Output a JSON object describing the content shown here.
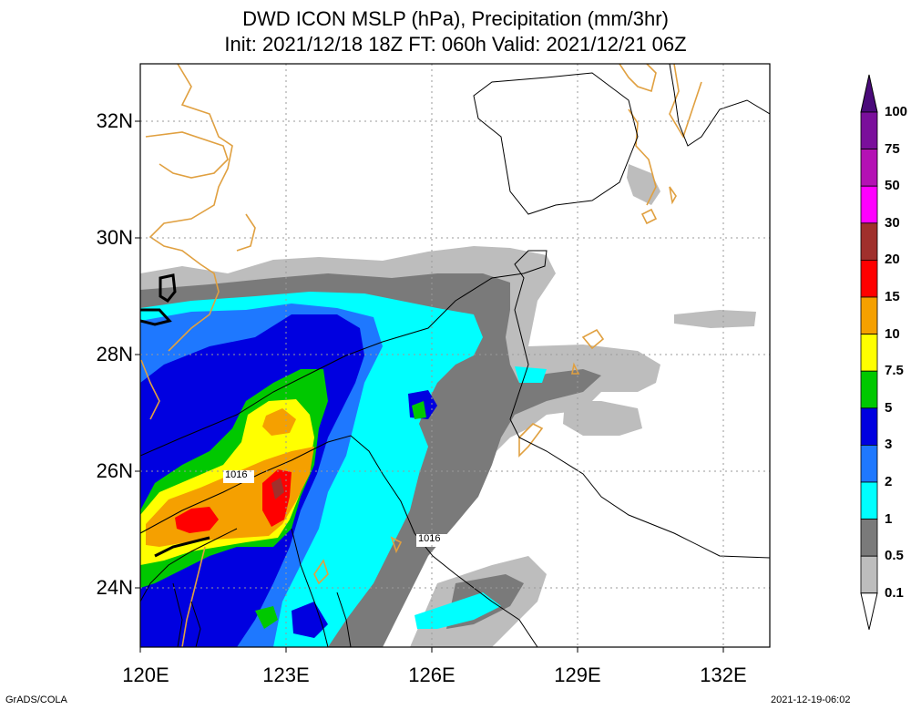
{
  "title_line1": "DWD ICON MSLP (hPa), Precipitation (mm/3hr)",
  "title_line2": "Init: 2021/12/18 18Z  FT: 060h  Valid: 2021/12/21 06Z",
  "lat_labels": [
    "32N",
    "30N",
    "28N",
    "26N",
    "24N"
  ],
  "lon_labels": [
    "120E",
    "123E",
    "126E",
    "129E",
    "132E"
  ],
  "colorbar": {
    "levels": [
      "100",
      "75",
      "50",
      "30",
      "20",
      "15",
      "10",
      "7.5",
      "5",
      "3",
      "2",
      "1",
      "0.5",
      "0.1"
    ],
    "colors": [
      "#7a0f9b",
      "#b411b4",
      "#ff00ff",
      "#a0302c",
      "#ff0000",
      "#f5a000",
      "#ffff00",
      "#00c800",
      "#0000e0",
      "#1e78ff",
      "#00ffff",
      "#7a7a7a",
      "#bdbdbd",
      "#ffffff"
    ]
  },
  "isobar_labels": [
    "1016",
    "1016"
  ],
  "footer_left": "GrADS/COLA",
  "footer_right": "2021-12-19-06:02"
}
